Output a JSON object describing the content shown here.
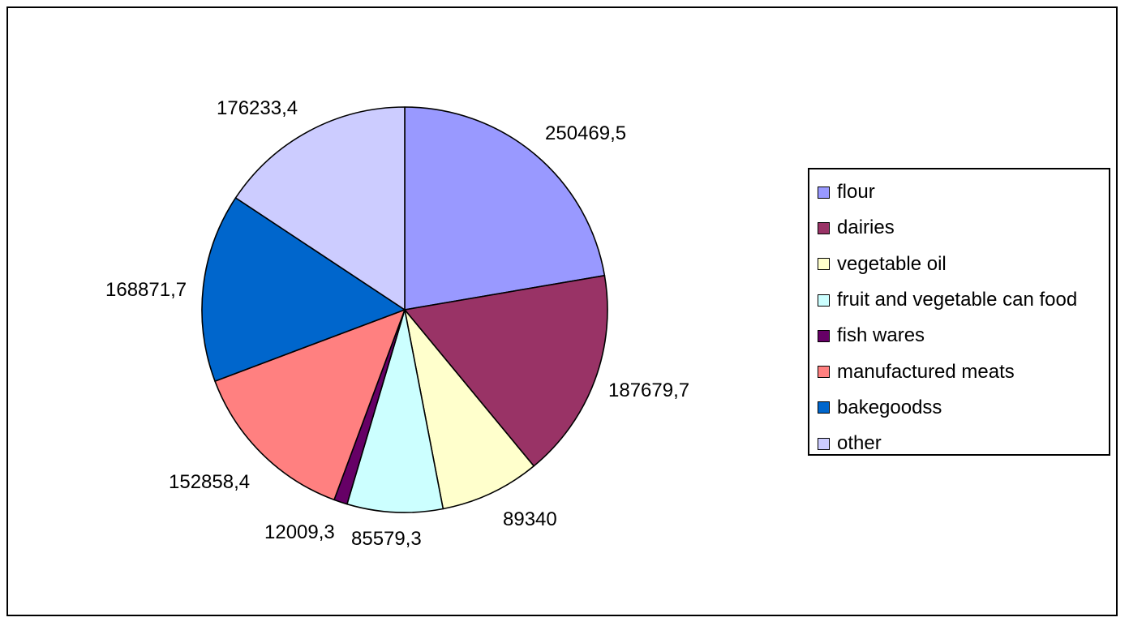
{
  "chart_data": {
    "type": "pie",
    "title": "",
    "legend_position": "right",
    "slices": [
      {
        "name": "flour",
        "value": 250469.5,
        "label": "250469,5",
        "color": "#9999ff"
      },
      {
        "name": "dairies",
        "value": 187679.7,
        "label": "187679,7",
        "color": "#993366"
      },
      {
        "name": "vegetable oil",
        "value": 89340,
        "label": "89340",
        "color": "#ffffcc"
      },
      {
        "name": "fruit and vegetable can food",
        "value": 85579.3,
        "label": "85579,3",
        "color": "#ccffff"
      },
      {
        "name": "fish wares",
        "value": 12009.3,
        "label": "12009,3",
        "color": "#660066"
      },
      {
        "name": "manufactured meats",
        "value": 152858.4,
        "label": "152858,4",
        "color": "#ff8080"
      },
      {
        "name": "bakegoodss",
        "value": 168871.7,
        "label": "168871,7",
        "color": "#0066cc"
      },
      {
        "name": "other",
        "value": 176233.4,
        "label": "176233,4",
        "color": "#ccccff"
      }
    ]
  }
}
